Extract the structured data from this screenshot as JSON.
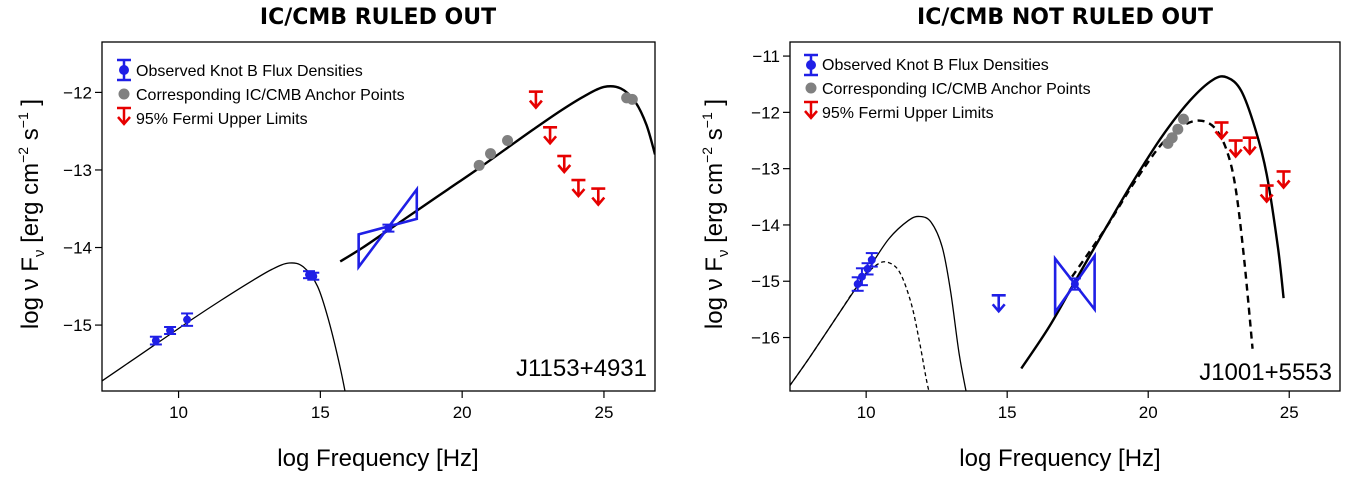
{
  "chart_data": [
    {
      "type": "scatter",
      "title": "IC/CMB RULED OUT",
      "xlabel": "log Frequency [Hz]",
      "ylabel_parts": {
        "pre": "log  ν F",
        "sub": "ν",
        "mid1": "  [erg  cm",
        "sup1": "−2",
        "mid2": "   s",
        "sup2": "−1",
        "post": " ]"
      },
      "source_label": "J1153+4931",
      "xlim": [
        7.3,
        26.8
      ],
      "ylim": [
        -15.85,
        -11.35
      ],
      "xticks": [
        {
          "v": 10,
          "label": "10"
        },
        {
          "v": 15,
          "label": "15"
        },
        {
          "v": 20,
          "label": "20"
        },
        {
          "v": 25,
          "label": "25"
        }
      ],
      "yticks": [
        {
          "v": -15,
          "label": "−15"
        },
        {
          "v": -14,
          "label": "−14"
        },
        {
          "v": -13,
          "label": "−13"
        },
        {
          "v": -12,
          "label": "−12"
        }
      ],
      "legend": {
        "position": "top-left",
        "entries": [
          "Observed Knot B Flux Densities",
          "Corresponding IC/CMB Anchor Points",
          "95% Fermi Upper Limits"
        ]
      },
      "observed_points": [
        {
          "x": 9.2,
          "y": -15.2,
          "err": 0.05
        },
        {
          "x": 9.7,
          "y": -15.07,
          "err": 0.03
        },
        {
          "x": 10.3,
          "y": -14.93,
          "err": 0.08
        },
        {
          "x": 14.6,
          "y": -14.35,
          "err": 0.04
        },
        {
          "x": 14.75,
          "y": -14.37,
          "err": 0.04
        },
        {
          "x": 17.4,
          "y": -13.75,
          "err": 0.02
        }
      ],
      "anchor_points": [
        {
          "x": 20.6,
          "y": -12.94
        },
        {
          "x": 21.0,
          "y": -12.79
        },
        {
          "x": 21.6,
          "y": -12.62
        },
        {
          "x": 25.8,
          "y": -12.07
        },
        {
          "x": 26.0,
          "y": -12.09
        }
      ],
      "upper_limits": [
        {
          "x": 22.6,
          "y": -11.99
        },
        {
          "x": 23.1,
          "y": -12.45
        },
        {
          "x": 23.6,
          "y": -12.82
        },
        {
          "x": 24.1,
          "y": -13.13
        },
        {
          "x": 24.8,
          "y": -13.24
        }
      ],
      "bowties": [
        {
          "x1": 16.35,
          "x2": 18.4,
          "lo1": -14.25,
          "hi1": -13.83,
          "lo2": -13.63,
          "hi2": -13.25
        }
      ],
      "curves": [
        {
          "style": "thin-solid",
          "x": [
            7.3,
            8.5,
            9.5,
            10.5,
            11.5,
            12.5,
            13.3,
            13.9,
            14.4,
            14.9,
            15.3,
            15.7,
            16.0
          ],
          "y": [
            -15.72,
            -15.42,
            -15.17,
            -14.92,
            -14.68,
            -14.45,
            -14.28,
            -14.2,
            -14.25,
            -14.5,
            -14.95,
            -15.55,
            -16.1
          ]
        },
        {
          "style": "thick-solid",
          "x": [
            15.7,
            16.5,
            17.5,
            18.5,
            19.5,
            20.5,
            21.5,
            22.5,
            23.5,
            24.3,
            25.0,
            25.6,
            26.1,
            26.5,
            26.8
          ],
          "y": [
            -14.18,
            -14.0,
            -13.75,
            -13.5,
            -13.25,
            -13.0,
            -12.74,
            -12.48,
            -12.23,
            -12.05,
            -11.93,
            -11.95,
            -12.12,
            -12.42,
            -12.8
          ]
        }
      ]
    },
    {
      "type": "scatter",
      "title": "IC/CMB NOT RULED OUT",
      "xlabel": "log Frequency [Hz]",
      "ylabel_parts": {
        "pre": "log  ν F",
        "sub": "ν",
        "mid1": "  [erg  cm",
        "sup1": "−2",
        "mid2": "   s",
        "sup2": "−1",
        "post": " ]"
      },
      "source_label": "J1001+5553",
      "xlim": [
        7.3,
        26.8
      ],
      "ylim": [
        -16.95,
        -10.75
      ],
      "xticks": [
        {
          "v": 10,
          "label": "10"
        },
        {
          "v": 15,
          "label": "15"
        },
        {
          "v": 20,
          "label": "20"
        },
        {
          "v": 25,
          "label": "25"
        }
      ],
      "yticks": [
        {
          "v": -16,
          "label": "−16"
        },
        {
          "v": -15,
          "label": "−15"
        },
        {
          "v": -14,
          "label": "−14"
        },
        {
          "v": -13,
          "label": "−13"
        },
        {
          "v": -12,
          "label": "−12"
        },
        {
          "v": -11,
          "label": "−11"
        }
      ],
      "legend": {
        "position": "top-left",
        "entries": [
          "Observed Knot B Flux Densities",
          "Corresponding IC/CMB Anchor Points",
          "95% Fermi Upper Limits"
        ]
      },
      "observed_points": [
        {
          "x": 9.7,
          "y": -15.05,
          "err": 0.12
        },
        {
          "x": 9.85,
          "y": -14.92,
          "err": 0.15
        },
        {
          "x": 10.05,
          "y": -14.78,
          "err": 0.1
        },
        {
          "x": 10.2,
          "y": -14.62,
          "err": 0.12
        },
        {
          "x": 17.4,
          "y": -15.05,
          "err": 0.1
        }
      ],
      "anchor_points": [
        {
          "x": 20.7,
          "y": -12.55
        },
        {
          "x": 20.85,
          "y": -12.45
        },
        {
          "x": 21.05,
          "y": -12.3
        },
        {
          "x": 21.25,
          "y": -12.12
        }
      ],
      "upper_limits": [
        {
          "x": 14.7,
          "y": -15.25
        },
        {
          "x": 22.6,
          "y": -12.18
        },
        {
          "x": 23.1,
          "y": -12.5
        },
        {
          "x": 23.6,
          "y": -12.45
        },
        {
          "x": 24.2,
          "y": -13.3
        },
        {
          "x": 24.8,
          "y": -13.05
        }
      ],
      "bowties": [
        {
          "x1": 16.7,
          "x2": 18.1,
          "lo1": -15.55,
          "hi1": -14.6,
          "lo2": -15.5,
          "hi2": -14.55
        }
      ],
      "curves": [
        {
          "style": "thin-solid",
          "x": [
            7.3,
            8.0,
            9.0,
            10.0,
            10.8,
            11.5,
            11.9,
            12.3,
            12.7,
            13.0,
            13.3,
            13.6
          ],
          "y": [
            -16.85,
            -16.35,
            -15.6,
            -14.85,
            -14.25,
            -13.92,
            -13.85,
            -13.95,
            -14.4,
            -15.2,
            -16.3,
            -17.1
          ]
        },
        {
          "style": "thin-dashed",
          "x": [
            7.3,
            8.0,
            9.0,
            9.8,
            10.4,
            10.8,
            11.2,
            11.6,
            11.9,
            12.2,
            12.5
          ],
          "y": [
            -16.85,
            -16.35,
            -15.6,
            -15.0,
            -14.7,
            -14.67,
            -14.85,
            -15.4,
            -16.1,
            -16.9,
            -17.4
          ]
        },
        {
          "style": "thick-solid",
          "x": [
            15.5,
            16.5,
            17.5,
            18.5,
            19.5,
            20.5,
            21.5,
            22.3,
            22.8,
            23.3,
            23.8,
            24.2,
            24.6,
            24.8
          ],
          "y": [
            -16.55,
            -15.8,
            -14.92,
            -14.05,
            -13.2,
            -12.42,
            -11.78,
            -11.42,
            -11.38,
            -11.62,
            -12.3,
            -13.1,
            -14.4,
            -15.3
          ]
        },
        {
          "style": "thick-dashed",
          "x": [
            17.3,
            18.5,
            19.5,
            20.5,
            21.3,
            21.9,
            22.4,
            22.8,
            23.1,
            23.4,
            23.7
          ],
          "y": [
            -14.92,
            -14.05,
            -13.25,
            -12.55,
            -12.22,
            -12.15,
            -12.3,
            -12.7,
            -13.35,
            -14.6,
            -16.2
          ]
        }
      ]
    }
  ]
}
